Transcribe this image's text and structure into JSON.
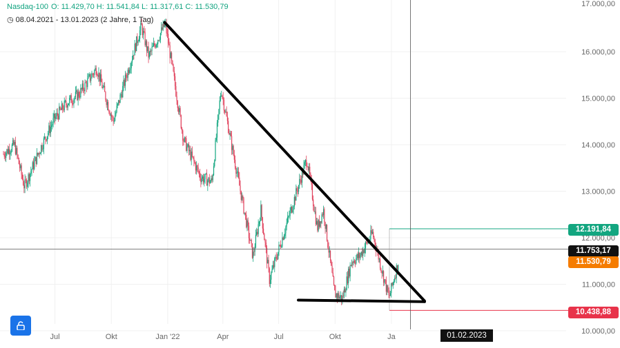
{
  "header": {
    "symbol": "Nasdaq-100",
    "ohlc": "O: 11.429,70  H: 11.541,84  L: 11.317,61  C: 11.530,79",
    "range": "08.04.2021 - 13.01.2023  (2 Jahre, 1 Tag)"
  },
  "colors": {
    "up": "#13a680",
    "down": "#e0405b",
    "accent": "#1a73e8",
    "green_tag": "#13a680",
    "orange_tag": "#f57c00",
    "red_tag": "#e8334a"
  },
  "chart_data": {
    "type": "candlestick",
    "title": "",
    "ylim": [
      9900,
      16950
    ],
    "y_ticks": [
      "10.000,00",
      "11.000,00",
      "12.000,00",
      "13.000,00",
      "14.000,00",
      "15.000,00",
      "16.000,00"
    ],
    "x_ticks": [
      "Jul",
      "Okt",
      "Jan '22",
      "Apr",
      "Jul",
      "Okt",
      "Ja"
    ],
    "price_path": [
      [
        "2021-04-08",
        13800
      ],
      [
        "2021-04-26",
        14000
      ],
      [
        "2021-05-12",
        13100
      ],
      [
        "2021-06-10",
        14000
      ],
      [
        "2021-06-30",
        14550
      ],
      [
        "2021-07-20",
        14900
      ],
      [
        "2021-08-10",
        15100
      ],
      [
        "2021-09-07",
        15650
      ],
      [
        "2021-10-04",
        14500
      ],
      [
        "2021-10-26",
        15500
      ],
      [
        "2021-11-19",
        16550
      ],
      [
        "2021-12-01",
        15900
      ],
      [
        "2021-12-28",
        16600
      ],
      [
        "2022-01-27",
        14100
      ],
      [
        "2022-02-24",
        13300
      ],
      [
        "2022-03-14",
        13200
      ],
      [
        "2022-03-29",
        15200
      ],
      [
        "2022-04-21",
        13600
      ],
      [
        "2022-05-20",
        11600
      ],
      [
        "2022-06-02",
        12600
      ],
      [
        "2022-06-16",
        11100
      ],
      [
        "2022-07-07",
        12000
      ],
      [
        "2022-08-16",
        13700
      ],
      [
        "2022-09-02",
        12200
      ],
      [
        "2022-09-12",
        12600
      ],
      [
        "2022-09-30",
        10800
      ],
      [
        "2022-10-13",
        10700
      ],
      [
        "2022-10-28",
        11500
      ],
      [
        "2022-11-10",
        11600
      ],
      [
        "2022-12-01",
        12100
      ],
      [
        "2022-12-28",
        10700
      ],
      [
        "2023-01-13",
        11530
      ]
    ],
    "trendline_upper": [
      [
        "2021-12-27",
        16630
      ],
      [
        "2023-02-24",
        10640
      ]
    ],
    "support_line": [
      [
        "2022-08-02",
        10660
      ],
      [
        "2023-02-24",
        10625
      ]
    ],
    "levels": {
      "resistance": "12.191,84",
      "crosshair": "11.753,17",
      "close": "11.530,79",
      "support": "10.438,88"
    },
    "crosshair_date": "01.02.2023"
  }
}
